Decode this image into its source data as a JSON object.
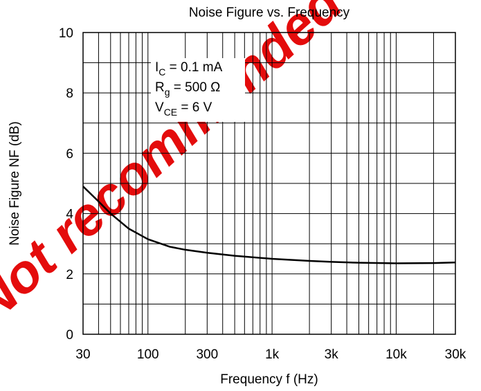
{
  "chart_data": {
    "type": "line",
    "title": "Noise Figure vs. Frequency",
    "x_label": "Frequency f (Hz)",
    "y_label": "Noise Figure NF (dB)",
    "log_x": true,
    "xlim": [
      30,
      30000
    ],
    "xticks": [
      30,
      100,
      300,
      {
        "value": 1000,
        "label": "1k"
      },
      {
        "value": 3000,
        "label": "3k"
      },
      {
        "value": 10000,
        "label": "10k"
      },
      {
        "value": 30000,
        "label": "30k"
      }
    ],
    "x_minor_ticks": [
      40,
      50,
      60,
      70,
      80,
      90,
      200,
      400,
      500,
      600,
      700,
      800,
      900,
      2000,
      4000,
      5000,
      6000,
      7000,
      8000,
      9000,
      20000
    ],
    "ylim": [
      0,
      10
    ],
    "yticks": [
      0,
      2,
      4,
      6,
      8,
      10
    ],
    "y_minor_ticks": [
      1,
      3,
      5,
      7,
      9
    ],
    "grid": true,
    "series": [
      {
        "name": "NF",
        "color": "#000000",
        "x": [
          30,
          40,
          50,
          70,
          100,
          150,
          200,
          300,
          500,
          1000,
          2000,
          3000,
          5000,
          10000,
          20000,
          30000
        ],
        "values": [
          4.9,
          4.4,
          4.0,
          3.5,
          3.15,
          2.9,
          2.8,
          2.7,
          2.6,
          2.5,
          2.43,
          2.4,
          2.37,
          2.35,
          2.36,
          2.38
        ]
      }
    ],
    "annotation": [
      {
        "main": "I",
        "sub": "C",
        "rest": " = 0.1 mA"
      },
      {
        "main": "R",
        "sub": "g",
        "rest": " = 500 Ω"
      },
      {
        "main": "V",
        "sub": "CE",
        "rest": " = 6 V"
      }
    ],
    "watermark": "Not recommended for new design"
  }
}
